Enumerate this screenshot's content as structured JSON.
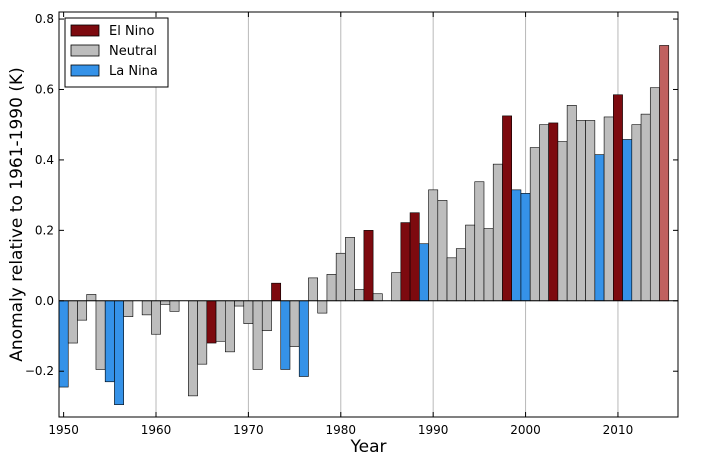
{
  "chart_data": {
    "type": "bar",
    "title": "",
    "xlabel": "Year",
    "ylabel": "Anomaly relative to 1961-1990 (K)",
    "xlim": [
      1949.5,
      2016.5
    ],
    "ylim": [
      -0.33,
      0.82
    ],
    "xticks": [
      1950,
      1960,
      1970,
      1980,
      1990,
      2000,
      2010
    ],
    "yticks": [
      -0.2,
      0.0,
      0.2,
      0.4,
      0.6,
      0.8
    ],
    "ytick_labels": [
      "−0.2",
      "0.0",
      "0.2",
      "0.4",
      "0.6",
      "0.8"
    ],
    "grid": "vertical at x ticks",
    "zero_line": true,
    "legend": {
      "placement": "top-left",
      "entries": [
        {
          "label": "El Nino",
          "color": "#7d0a0f"
        },
        {
          "label": "Neutral",
          "color": "#bdbdbd"
        },
        {
          "label": "La Nina",
          "color": "#3592e8"
        }
      ]
    },
    "colors": {
      "el_nino": "#7d0a0f",
      "neutral": "#bdbdbd",
      "la_nina": "#3592e8",
      "latest": "#c0605f"
    },
    "bars": [
      {
        "year": 1950,
        "value": -0.245,
        "phase": "la_nina"
      },
      {
        "year": 1951,
        "value": -0.12,
        "phase": "neutral"
      },
      {
        "year": 1952,
        "value": -0.055,
        "phase": "neutral"
      },
      {
        "year": 1953,
        "value": 0.018,
        "phase": "neutral"
      },
      {
        "year": 1954,
        "value": -0.195,
        "phase": "neutral"
      },
      {
        "year": 1955,
        "value": -0.23,
        "phase": "la_nina"
      },
      {
        "year": 1956,
        "value": -0.295,
        "phase": "la_nina"
      },
      {
        "year": 1957,
        "value": -0.045,
        "phase": "neutral"
      },
      {
        "year": 1958,
        "value": 0.0,
        "phase": "neutral"
      },
      {
        "year": 1959,
        "value": -0.04,
        "phase": "neutral"
      },
      {
        "year": 1960,
        "value": -0.095,
        "phase": "neutral"
      },
      {
        "year": 1961,
        "value": -0.01,
        "phase": "neutral"
      },
      {
        "year": 1962,
        "value": -0.03,
        "phase": "neutral"
      },
      {
        "year": 1963,
        "value": 0.0,
        "phase": "neutral"
      },
      {
        "year": 1964,
        "value": -0.27,
        "phase": "neutral"
      },
      {
        "year": 1965,
        "value": -0.18,
        "phase": "neutral"
      },
      {
        "year": 1966,
        "value": -0.12,
        "phase": "el_nino"
      },
      {
        "year": 1967,
        "value": -0.115,
        "phase": "neutral"
      },
      {
        "year": 1968,
        "value": -0.145,
        "phase": "neutral"
      },
      {
        "year": 1969,
        "value": -0.015,
        "phase": "neutral"
      },
      {
        "year": 1970,
        "value": -0.065,
        "phase": "neutral"
      },
      {
        "year": 1971,
        "value": -0.195,
        "phase": "neutral"
      },
      {
        "year": 1972,
        "value": -0.085,
        "phase": "neutral"
      },
      {
        "year": 1973,
        "value": 0.05,
        "phase": "el_nino"
      },
      {
        "year": 1974,
        "value": -0.195,
        "phase": "la_nina"
      },
      {
        "year": 1975,
        "value": -0.13,
        "phase": "neutral"
      },
      {
        "year": 1976,
        "value": -0.215,
        "phase": "la_nina"
      },
      {
        "year": 1977,
        "value": 0.065,
        "phase": "neutral"
      },
      {
        "year": 1978,
        "value": -0.035,
        "phase": "neutral"
      },
      {
        "year": 1979,
        "value": 0.075,
        "phase": "neutral"
      },
      {
        "year": 1980,
        "value": 0.135,
        "phase": "neutral"
      },
      {
        "year": 1981,
        "value": 0.18,
        "phase": "neutral"
      },
      {
        "year": 1982,
        "value": 0.032,
        "phase": "neutral"
      },
      {
        "year": 1983,
        "value": 0.2,
        "phase": "el_nino"
      },
      {
        "year": 1984,
        "value": 0.02,
        "phase": "neutral"
      },
      {
        "year": 1985,
        "value": 0.0,
        "phase": "neutral"
      },
      {
        "year": 1986,
        "value": 0.08,
        "phase": "neutral"
      },
      {
        "year": 1987,
        "value": 0.222,
        "phase": "el_nino"
      },
      {
        "year": 1988,
        "value": 0.25,
        "phase": "el_nino"
      },
      {
        "year": 1989,
        "value": 0.162,
        "phase": "la_nina"
      },
      {
        "year": 1990,
        "value": 0.315,
        "phase": "neutral"
      },
      {
        "year": 1991,
        "value": 0.285,
        "phase": "neutral"
      },
      {
        "year": 1992,
        "value": 0.122,
        "phase": "neutral"
      },
      {
        "year": 1993,
        "value": 0.148,
        "phase": "neutral"
      },
      {
        "year": 1994,
        "value": 0.215,
        "phase": "neutral"
      },
      {
        "year": 1995,
        "value": 0.338,
        "phase": "neutral"
      },
      {
        "year": 1996,
        "value": 0.205,
        "phase": "neutral"
      },
      {
        "year": 1997,
        "value": 0.388,
        "phase": "neutral"
      },
      {
        "year": 1998,
        "value": 0.525,
        "phase": "el_nino"
      },
      {
        "year": 1999,
        "value": 0.315,
        "phase": "la_nina"
      },
      {
        "year": 2000,
        "value": 0.305,
        "phase": "la_nina"
      },
      {
        "year": 2001,
        "value": 0.435,
        "phase": "neutral"
      },
      {
        "year": 2002,
        "value": 0.5,
        "phase": "neutral"
      },
      {
        "year": 2003,
        "value": 0.505,
        "phase": "el_nino"
      },
      {
        "year": 2004,
        "value": 0.452,
        "phase": "neutral"
      },
      {
        "year": 2005,
        "value": 0.555,
        "phase": "neutral"
      },
      {
        "year": 2006,
        "value": 0.512,
        "phase": "neutral"
      },
      {
        "year": 2007,
        "value": 0.512,
        "phase": "neutral"
      },
      {
        "year": 2008,
        "value": 0.415,
        "phase": "la_nina"
      },
      {
        "year": 2009,
        "value": 0.522,
        "phase": "neutral"
      },
      {
        "year": 2010,
        "value": 0.585,
        "phase": "el_nino"
      },
      {
        "year": 2011,
        "value": 0.458,
        "phase": "la_nina"
      },
      {
        "year": 2012,
        "value": 0.5,
        "phase": "neutral"
      },
      {
        "year": 2013,
        "value": 0.53,
        "phase": "neutral"
      },
      {
        "year": 2014,
        "value": 0.605,
        "phase": "neutral"
      },
      {
        "year": 2015,
        "value": 0.725,
        "phase": "latest"
      }
    ]
  }
}
